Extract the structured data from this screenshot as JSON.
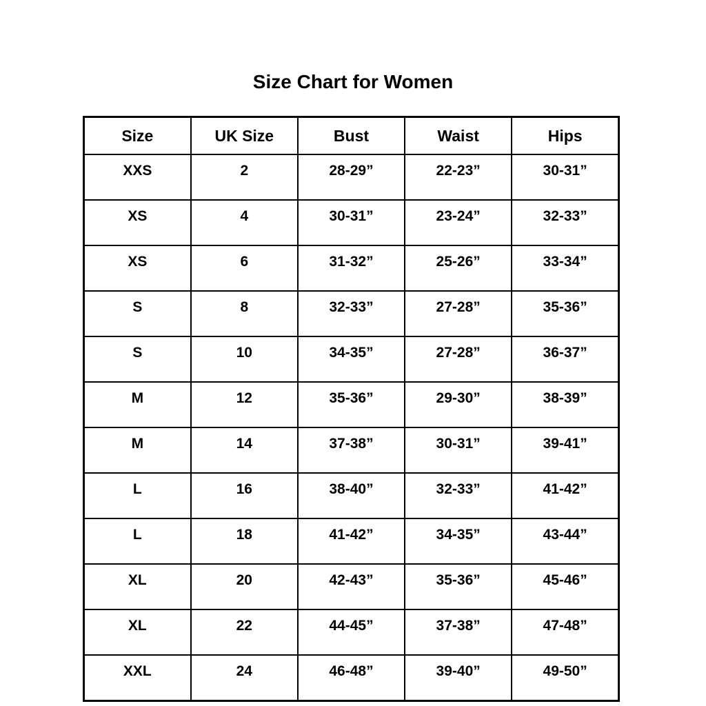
{
  "page": {
    "background_color": "#ffffff",
    "text_color": "#000000",
    "border_color": "#000000"
  },
  "title": "Size Chart for Women",
  "chart_data": {
    "type": "table",
    "title": "Size Chart for Women",
    "columns": [
      "Size",
      "UK Size",
      "Bust",
      "Waist",
      "Hips"
    ],
    "rows": [
      [
        "XXS",
        "2",
        "28-29”",
        "22-23”",
        "30-31”"
      ],
      [
        "XS",
        "4",
        "30-31”",
        "23-24”",
        "32-33”"
      ],
      [
        "XS",
        "6",
        "31-32”",
        "25-26”",
        "33-34”"
      ],
      [
        "S",
        "8",
        "32-33”",
        "27-28”",
        "35-36”"
      ],
      [
        "S",
        "10",
        "34-35”",
        "27-28”",
        "36-37”"
      ],
      [
        "M",
        "12",
        "35-36”",
        "29-30”",
        "38-39”"
      ],
      [
        "M",
        "14",
        "37-38”",
        "30-31”",
        "39-41”"
      ],
      [
        "L",
        "16",
        "38-40”",
        "32-33”",
        "41-42”"
      ],
      [
        "L",
        "18",
        "41-42”",
        "34-35”",
        "43-44”"
      ],
      [
        "XL",
        "20",
        "42-43”",
        "35-36”",
        "45-46”"
      ],
      [
        "XL",
        "22",
        "44-45”",
        "37-38”",
        "47-48”"
      ],
      [
        "XXL",
        "24",
        "46-48”",
        "39-40”",
        "49-50”"
      ]
    ]
  }
}
